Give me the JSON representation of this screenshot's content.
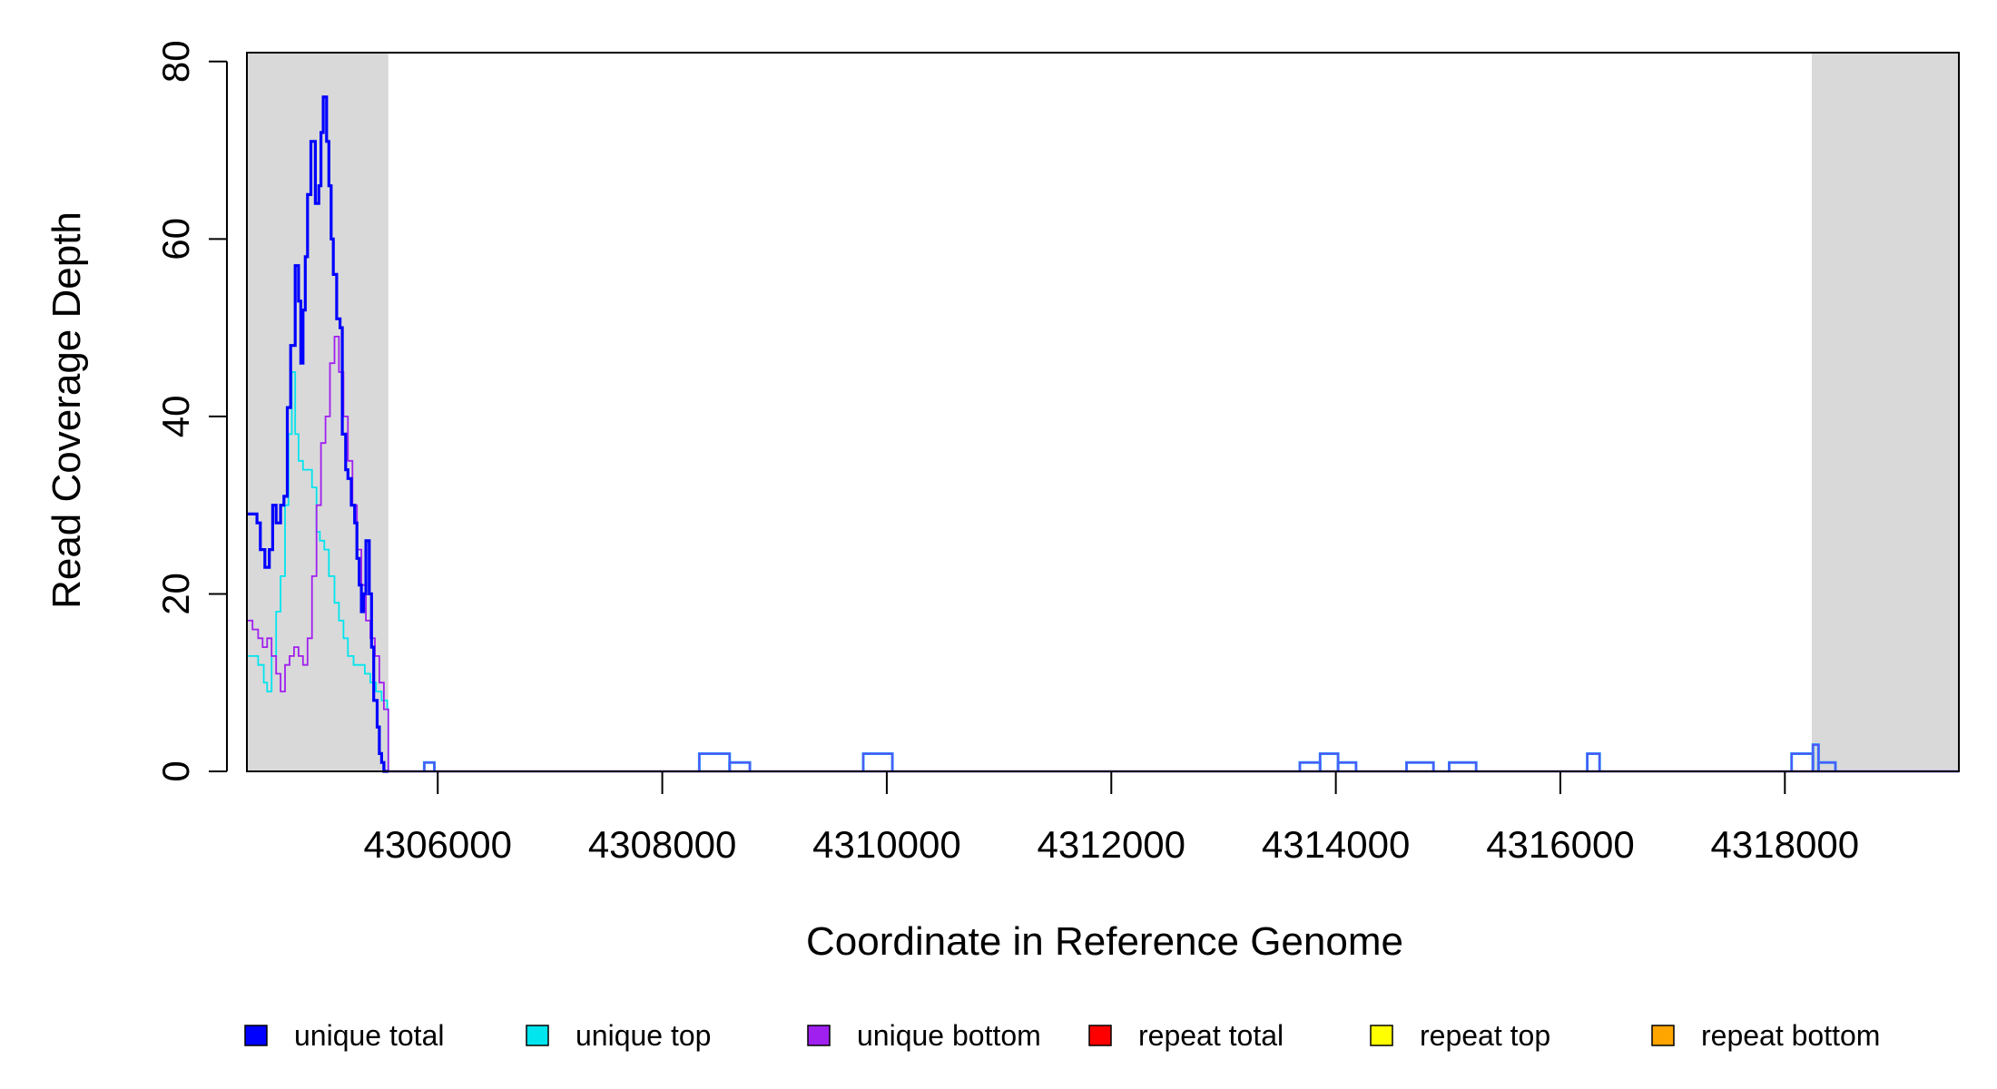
{
  "chart_data": {
    "type": "line",
    "xlabel": "Coordinate in Reference Genome",
    "ylabel": "Read Coverage Depth",
    "xlim": [
      4304300,
      4319550
    ],
    "ylim": [
      0,
      81
    ],
    "x_ticks": [
      4306000,
      4308000,
      4310000,
      4312000,
      4314000,
      4316000,
      4318000
    ],
    "x_tick_labels": [
      "4306000",
      "4308000",
      "4310000",
      "4312000",
      "4314000",
      "4316000",
      "4318000"
    ],
    "y_ticks": [
      0,
      20,
      40,
      60,
      80
    ],
    "y_tick_labels": [
      "0",
      "20",
      "40",
      "60",
      "80"
    ],
    "grid": false,
    "legend_position": "bottom",
    "shaded_regions": [
      {
        "from": 4304300,
        "to": 4305560,
        "color": "#d9d9d9"
      },
      {
        "from": 4318240,
        "to": 4319550,
        "color": "#d9d9d9"
      }
    ],
    "series": [
      {
        "name": "unique total",
        "color": "#0000ff",
        "x": [
          4304300,
          4304390,
          4304420,
          4304460,
          4304500,
          4304530,
          4304560,
          4304600,
          4304630,
          4304660,
          4304690,
          4304730,
          4304760,
          4304780,
          4304800,
          4304820,
          4304840,
          4304870,
          4304910,
          4304940,
          4304960,
          4304980,
          4305010,
          4305030,
          4305050,
          4305070,
          4305100,
          4305130,
          4305150,
          4305180,
          4305200,
          4305230,
          4305260,
          4305280,
          4305300,
          4305320,
          4305340,
          4305360,
          4305390,
          4305410,
          4305430,
          4305460,
          4305480,
          4305500,
          4305520,
          4305540,
          4305560
        ],
        "y": [
          29,
          28,
          25,
          23,
          25,
          30,
          28,
          30,
          31,
          41,
          48,
          57,
          53,
          46,
          52,
          58,
          65,
          71,
          64,
          66,
          72,
          76,
          71,
          66,
          60,
          56,
          51,
          50,
          38,
          34,
          33,
          30,
          28,
          24,
          21,
          18,
          20,
          26,
          20,
          14,
          8,
          5,
          2,
          1,
          0,
          0,
          0
        ]
      },
      {
        "name": "unique top",
        "color": "#00e5ee",
        "x": [
          4304300,
          4304400,
          4304450,
          4304480,
          4304520,
          4304560,
          4304600,
          4304640,
          4304670,
          4304700,
          4304730,
          4304760,
          4304800,
          4304840,
          4304880,
          4304920,
          4304950,
          4304990,
          4305030,
          4305080,
          4305120,
          4305160,
          4305200,
          4305250,
          4305300,
          4305350,
          4305400,
          4305450,
          4305500,
          4305550,
          4305560
        ],
        "y": [
          13,
          12,
          10,
          9,
          13,
          18,
          22,
          30,
          38,
          45,
          38,
          35,
          34,
          34,
          32,
          27,
          26,
          25,
          22,
          19,
          17,
          15,
          13,
          12,
          12,
          11,
          10,
          9,
          8,
          7,
          0
        ]
      },
      {
        "name": "unique bottom",
        "color": "#a020f0",
        "x": [
          4304300,
          4304350,
          4304400,
          4304440,
          4304480,
          4304520,
          4304560,
          4304600,
          4304640,
          4304680,
          4304720,
          4304760,
          4304800,
          4304840,
          4304880,
          4304920,
          4304960,
          4305000,
          4305040,
          4305080,
          4305120,
          4305160,
          4305200,
          4305240,
          4305280,
          4305320,
          4305360,
          4305400,
          4305440,
          4305480,
          4305520,
          4305560
        ],
        "y": [
          17,
          16,
          15,
          14,
          15,
          13,
          11,
          9,
          12,
          13,
          14,
          13,
          12,
          15,
          22,
          30,
          37,
          40,
          46,
          49,
          45,
          40,
          35,
          30,
          25,
          21,
          17,
          15,
          13,
          10,
          7,
          0
        ]
      },
      {
        "name": "repeat total",
        "color": "#ff0000",
        "x": [
          4304300,
          4319550
        ],
        "y": [
          0,
          0
        ]
      },
      {
        "name": "repeat top",
        "color": "#ffff00",
        "x": [
          4304300,
          4319550
        ],
        "y": [
          0,
          0
        ]
      },
      {
        "name": "repeat bottom",
        "color": "#ffa500",
        "x": [
          4304300,
          4319550
        ],
        "y": [
          0,
          0
        ]
      }
    ],
    "low_features": [
      {
        "x": [
          4305880,
          4305970
        ],
        "y": 1
      },
      {
        "x": [
          4308330,
          4308600
        ],
        "y": 2
      },
      {
        "x": [
          4308600,
          4308780
        ],
        "y": 1
      },
      {
        "x": [
          4309790,
          4310050
        ],
        "y": 2
      },
      {
        "x": [
          4313680,
          4313860
        ],
        "y": 1
      },
      {
        "x": [
          4313860,
          4314020
        ],
        "y": 2
      },
      {
        "x": [
          4314020,
          4314180
        ],
        "y": 1
      },
      {
        "x": [
          4314630,
          4314870
        ],
        "y": 1
      },
      {
        "x": [
          4315010,
          4315250
        ],
        "y": 1
      },
      {
        "x": [
          4316240,
          4316350
        ],
        "y": 2
      },
      {
        "x": [
          4318060,
          4318250
        ],
        "y": 2
      },
      {
        "x": [
          4318250,
          4318300
        ],
        "y": 3
      },
      {
        "x": [
          4318300,
          4318450
        ],
        "y": 1
      }
    ]
  }
}
